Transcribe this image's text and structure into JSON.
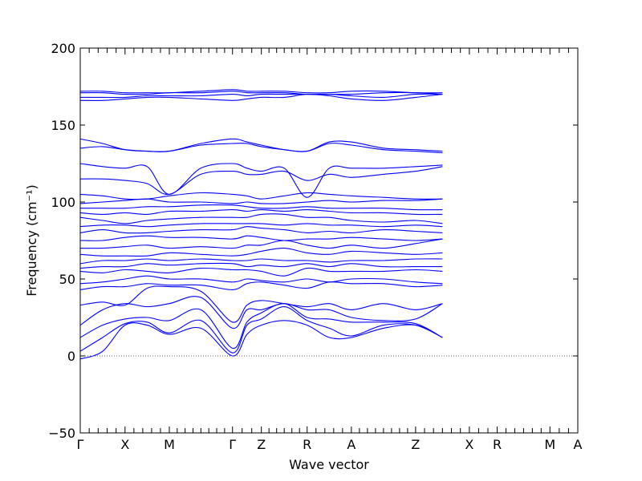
{
  "chart_data": {
    "type": "line",
    "title": "",
    "xlabel": "Wave vector",
    "ylabel": "Frequency (cm⁻¹)",
    "ylim": [
      -50,
      200
    ],
    "yticks": [
      -50,
      0,
      50,
      100,
      150,
      200
    ],
    "ytick_labels": [
      "−50",
      "0",
      "50",
      "100",
      "150",
      "200"
    ],
    "xlim": [
      0,
      1
    ],
    "kpoints": [
      {
        "label": "Γ",
        "x": 0.0
      },
      {
        "label": "X",
        "x": 0.09
      },
      {
        "label": "M",
        "x": 0.179
      },
      {
        "label": "Γ",
        "x": 0.306
      },
      {
        "label": "Z",
        "x": 0.364
      },
      {
        "label": "R",
        "x": 0.456
      },
      {
        "label": "A",
        "x": 0.545
      },
      {
        "label": "Z",
        "x": 0.674
      },
      {
        "label": "X",
        "x": 0.782
      },
      {
        "label": "R",
        "x": 0.838
      },
      {
        "label": "M",
        "x": 0.944
      },
      {
        "label": "A",
        "x": 1.0
      }
    ],
    "zero_line": true,
    "series_color": "#0000ff",
    "series": [
      {
        "values": [
          -2,
          3,
          20,
          20,
          14,
          18,
          0,
          14,
          20,
          23,
          20,
          12,
          12,
          18,
          20,
          12
        ]
      },
      {
        "values": [
          3,
          12,
          21,
          22,
          15,
          23,
          2,
          20,
          24,
          32,
          23,
          18,
          13,
          20,
          20,
          12
        ]
      },
      {
        "values": [
          12,
          20,
          24,
          25,
          23,
          30,
          5,
          22,
          28,
          34,
          25,
          24,
          22,
          22,
          21,
          12
        ]
      },
      {
        "values": [
          20,
          30,
          34,
          32,
          34,
          38,
          18,
          30,
          30,
          34,
          30,
          30,
          25,
          23,
          24,
          34
        ]
      },
      {
        "values": [
          33,
          35,
          33,
          44,
          45,
          42,
          22,
          33,
          36,
          34,
          32,
          34,
          30,
          34,
          30,
          34
        ]
      },
      {
        "values": [
          43,
          45,
          45,
          47,
          46,
          46,
          43,
          47,
          48,
          46,
          44,
          48,
          47,
          47,
          45,
          46
        ]
      },
      {
        "values": [
          47,
          48,
          50,
          52,
          50,
          50,
          48,
          50,
          49,
          48,
          50,
          48,
          50,
          50,
          48,
          47
        ]
      },
      {
        "values": [
          55,
          54,
          56,
          55,
          54,
          57,
          56,
          56,
          55,
          52,
          57,
          55,
          55,
          55,
          56,
          55
        ]
      },
      {
        "values": [
          57,
          58,
          58,
          60,
          59,
          60,
          60,
          58,
          59,
          58,
          60,
          58,
          60,
          58,
          58,
          58
        ]
      },
      {
        "values": [
          60,
          62,
          62,
          63,
          62,
          63,
          62,
          62,
          63,
          62,
          62,
          61,
          62,
          62,
          63,
          63
        ]
      },
      {
        "values": [
          66,
          65,
          65,
          65,
          67,
          66,
          65,
          66,
          68,
          70,
          67,
          66,
          68,
          67,
          66,
          67
        ]
      },
      {
        "values": [
          70,
          70,
          71,
          72,
          70,
          71,
          70,
          72,
          72,
          75,
          72,
          70,
          72,
          70,
          73,
          76
        ]
      },
      {
        "values": [
          75,
          75,
          77,
          78,
          77,
          77,
          76,
          78,
          77,
          75,
          76,
          76,
          77,
          76,
          75,
          76
        ]
      },
      {
        "values": [
          80,
          82,
          80,
          80,
          81,
          82,
          82,
          84,
          83,
          82,
          80,
          81,
          80,
          82,
          81,
          80
        ]
      },
      {
        "values": [
          84,
          85,
          85,
          84,
          85,
          86,
          86,
          86,
          86,
          85,
          86,
          85,
          85,
          84,
          85,
          84
        ]
      },
      {
        "values": [
          90,
          88,
          86,
          88,
          89,
          90,
          90,
          90,
          92,
          92,
          90,
          90,
          88,
          87,
          88,
          86
        ]
      },
      {
        "values": [
          93,
          92,
          93,
          92,
          94,
          94,
          95,
          94,
          95,
          94,
          95,
          94,
          93,
          93,
          92,
          92
        ]
      },
      {
        "values": [
          96,
          96,
          96,
          97,
          97,
          98,
          98,
          97,
          96,
          96,
          97,
          96,
          96,
          96,
          95,
          95
        ]
      },
      {
        "values": [
          99,
          100,
          101,
          102,
          100,
          100,
          99,
          100,
          99,
          99,
          100,
          101,
          100,
          101,
          101,
          102
        ]
      },
      {
        "values": [
          105,
          104,
          102,
          102,
          104,
          106,
          105,
          104,
          102,
          104,
          106,
          105,
          104,
          103,
          102,
          102
        ]
      },
      {
        "values": [
          115,
          115,
          114,
          112,
          105,
          118,
          120,
          118,
          118,
          120,
          114,
          118,
          116,
          118,
          120,
          123
        ]
      },
      {
        "values": [
          125,
          123,
          122,
          123,
          105,
          122,
          125,
          122,
          120,
          122,
          103,
          122,
          122,
          122,
          123,
          124
        ]
      },
      {
        "values": [
          135,
          136,
          134,
          133,
          133,
          137,
          138,
          138,
          136,
          134,
          133,
          138,
          137,
          134,
          133,
          132
        ]
      },
      {
        "values": [
          141,
          138,
          134,
          133,
          133,
          138,
          141,
          139,
          137,
          134,
          133,
          139,
          139,
          135,
          134,
          133
        ]
      },
      {
        "values": [
          166,
          166,
          167,
          168,
          168,
          167,
          166,
          167,
          168,
          168,
          170,
          169,
          167,
          166,
          168,
          170
        ]
      },
      {
        "values": [
          168,
          168,
          168,
          169,
          169,
          169,
          170,
          169,
          170,
          170,
          170,
          170,
          169,
          168,
          170,
          170
        ]
      },
      {
        "values": [
          171,
          171,
          170,
          170,
          171,
          171,
          172,
          171,
          171,
          171,
          170,
          170,
          170,
          171,
          171,
          170
        ]
      },
      {
        "values": [
          172,
          172,
          171,
          171,
          171,
          172,
          173,
          172,
          172,
          172,
          171,
          171,
          172,
          172,
          171,
          171
        ]
      }
    ]
  }
}
